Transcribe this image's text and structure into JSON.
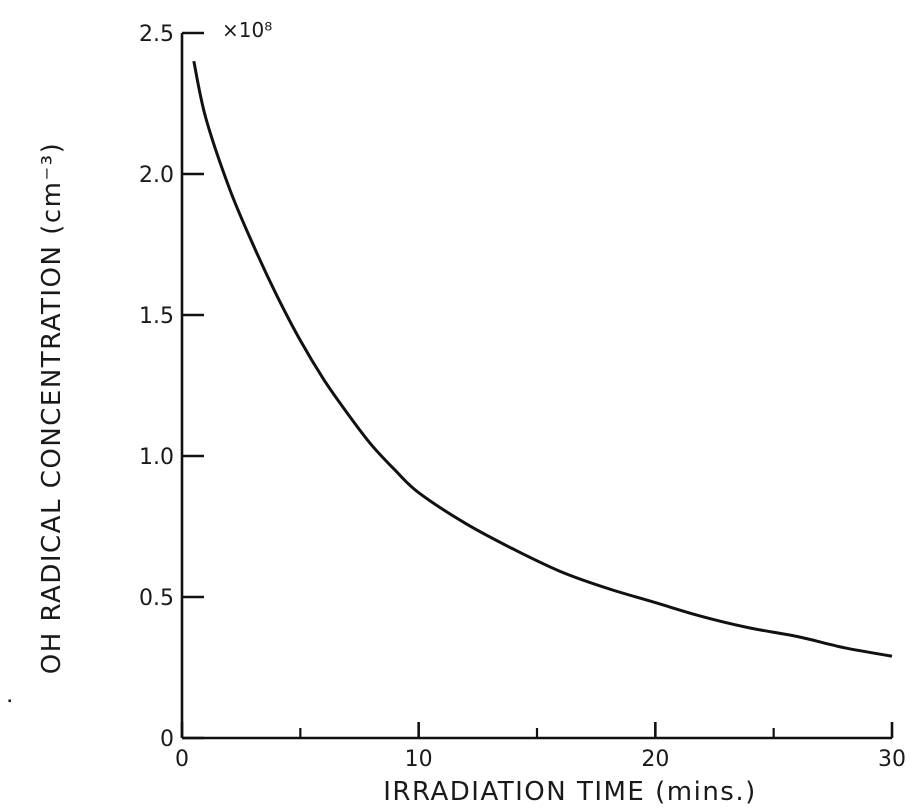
{
  "chart_data": {
    "type": "line",
    "xlabel": "IRRADIATION TIME (mins.)",
    "ylabel": "OH RADICAL CONCENTRATION (cm⁻³)",
    "ylabel_radical_dot": "˙",
    "y_scale_label": "×10⁸",
    "xlim": [
      0,
      30
    ],
    "ylim": [
      0,
      2.5
    ],
    "x_ticks": [
      0,
      10,
      20,
      30
    ],
    "x_tick_labels": [
      "0",
      "10",
      "20",
      "30"
    ],
    "x_minor_ticks": [
      5,
      15,
      25
    ],
    "y_ticks": [
      0,
      0.5,
      1.0,
      1.5,
      2.0,
      2.5
    ],
    "y_tick_labels": [
      "0",
      "0.5",
      "1.0",
      "1.5",
      "2.0",
      "2.5"
    ],
    "grid": false,
    "series": [
      {
        "x": [
          0.5,
          1,
          2,
          3,
          4,
          5,
          6,
          7,
          8,
          9,
          10,
          12,
          14,
          16,
          18,
          20,
          22,
          24,
          26,
          28,
          30
        ],
        "y": [
          2.4,
          2.2,
          1.95,
          1.75,
          1.57,
          1.41,
          1.27,
          1.15,
          1.04,
          0.95,
          0.87,
          0.76,
          0.67,
          0.59,
          0.53,
          0.48,
          0.43,
          0.39,
          0.36,
          0.32,
          0.29
        ]
      }
    ]
  }
}
